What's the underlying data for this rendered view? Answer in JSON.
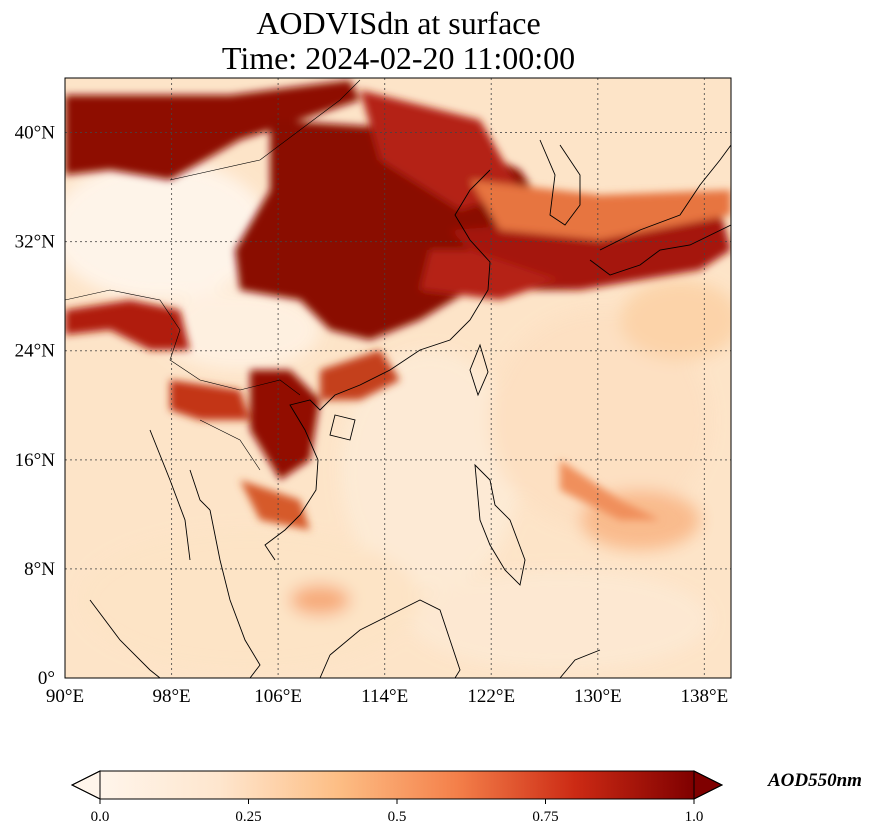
{
  "title": {
    "line1": "AODVISdn at surface",
    "line2": "Time: 2024-02-20 11:00:00"
  },
  "map": {
    "lon_range": [
      90,
      140
    ],
    "lat_range": [
      0,
      44
    ],
    "lon_ticks": [
      "90°E",
      "98°E",
      "106°E",
      "114°E",
      "122°E",
      "130°E",
      "138°E"
    ],
    "lon_values": [
      90,
      98,
      106,
      114,
      122,
      130,
      138
    ],
    "lat_ticks": [
      "0°",
      "8°N",
      "16°N",
      "24°N",
      "32°N",
      "40°N"
    ],
    "lat_values": [
      0,
      8,
      16,
      24,
      32,
      40
    ],
    "gridlines": "dotted",
    "colormap": [
      "#fff5eb",
      "#fdd9b3",
      "#fdae6b",
      "#f16913",
      "#d94801",
      "#a30f02",
      "#7f0000"
    ]
  },
  "colorbar": {
    "label": "AOD550nm",
    "ticks": [
      "0.0",
      "0.25",
      "0.5",
      "0.75",
      "1.0"
    ],
    "tick_values": [
      0,
      0.25,
      0.5,
      0.75,
      1.0
    ],
    "extend": "both"
  }
}
